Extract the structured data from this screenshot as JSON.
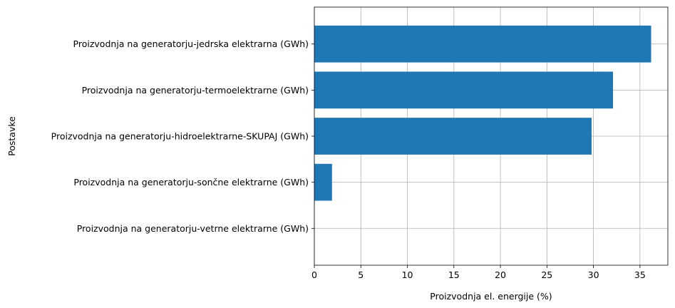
{
  "chart_data": {
    "type": "bar",
    "orientation": "horizontal",
    "categories": [
      "Proizvodnja na generatorju-vetrne elektrarne (GWh)",
      "Proizvodnja na generatorju-sončne elektrarne (GWh)",
      "Proizvodnja na generatorju-hidroelektrarne-SKUPAJ (GWh)",
      "Proizvodnja na generatorju-termoelektrarne (GWh)",
      "Proizvodnja na generatorju-jedrska elektrarna (GWh)"
    ],
    "values": [
      0.0,
      1.9,
      29.8,
      32.1,
      36.2
    ],
    "title": "",
    "xlabel": "Proizvodnja el. energije (%)",
    "ylabel": "Postavke",
    "xlim": [
      0,
      38
    ],
    "xticks": [
      0,
      5,
      10,
      15,
      20,
      25,
      30,
      35
    ],
    "grid": true,
    "bar_color": "#1f77b4"
  }
}
